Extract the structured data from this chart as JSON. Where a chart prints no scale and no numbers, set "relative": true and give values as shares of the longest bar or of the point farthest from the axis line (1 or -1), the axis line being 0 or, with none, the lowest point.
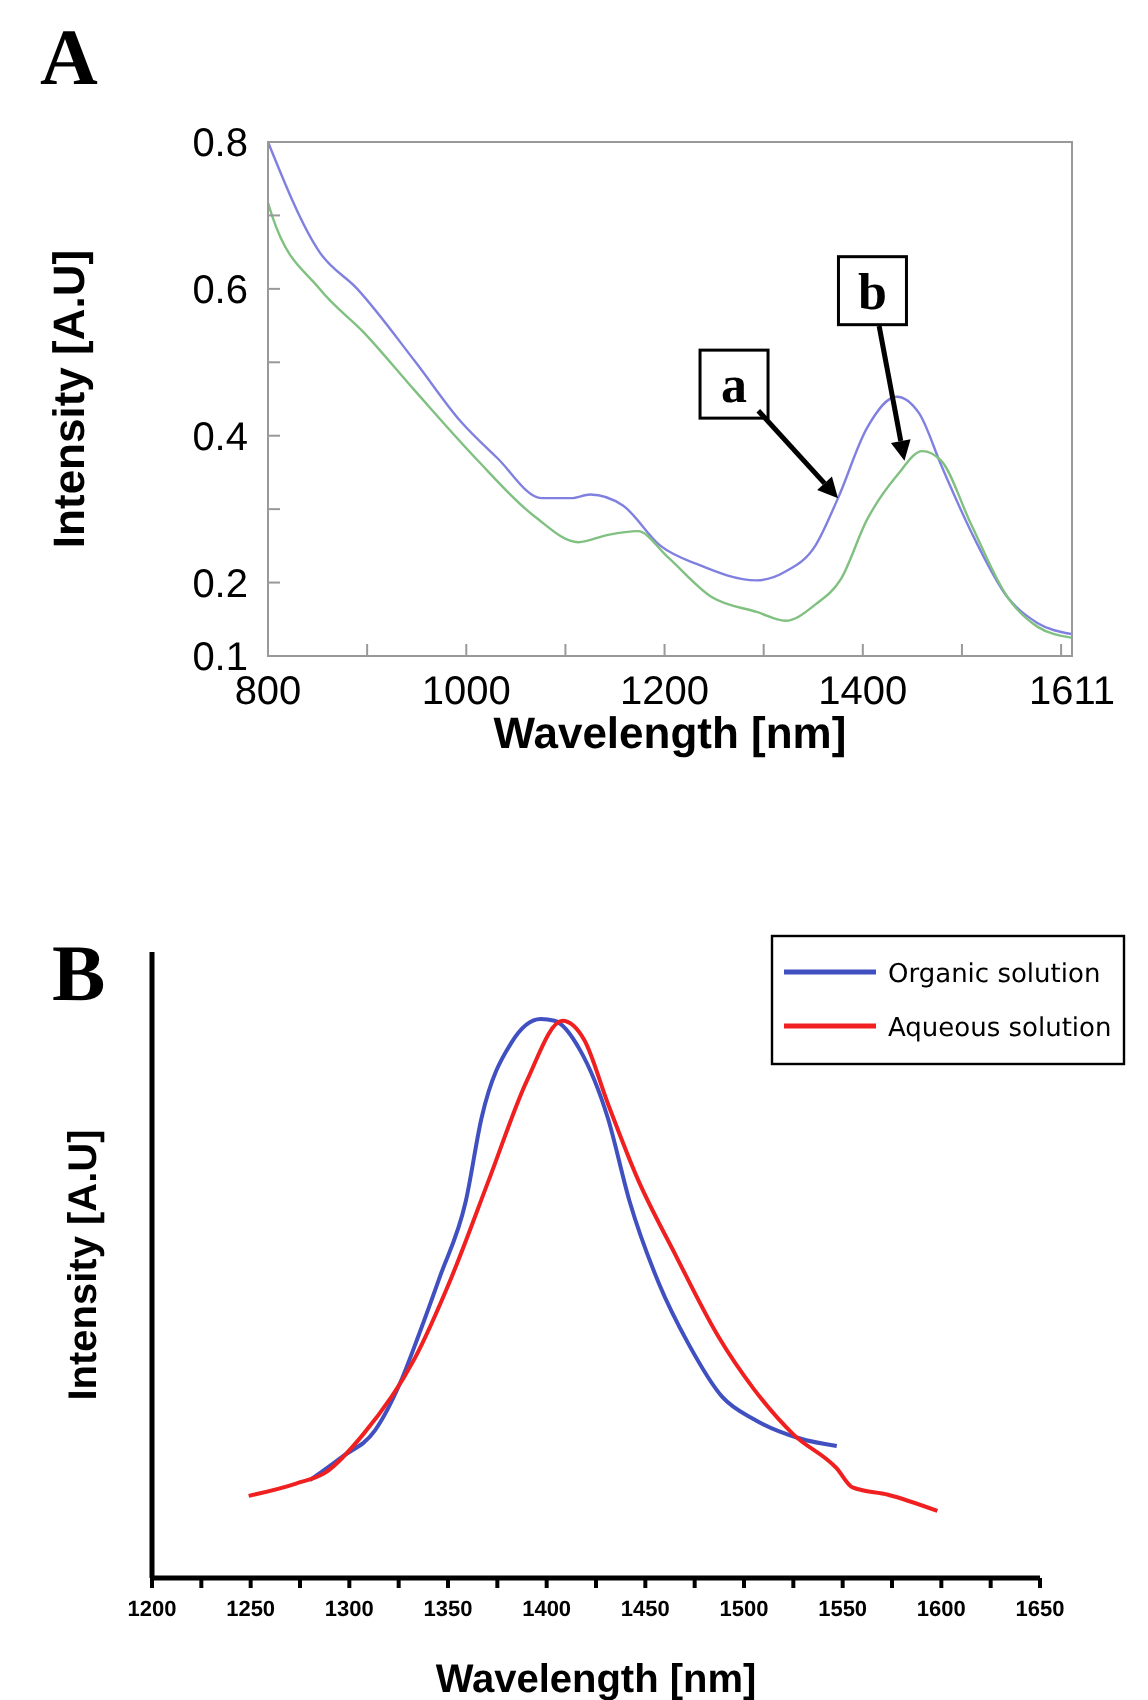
{
  "chart_data": [
    {
      "type": "line",
      "title": "A",
      "xlabel": "Wavelength [nm]",
      "ylabel": "Intensity [A.U]",
      "x": [
        800,
        852,
        890,
        949,
        994,
        1031,
        1076,
        1106,
        1125,
        1158,
        1196,
        1233,
        1293,
        1322,
        1352,
        1375,
        1404,
        1434,
        1457,
        1479,
        1509,
        1546,
        1576,
        1610
      ],
      "series": [
        {
          "color": "#8080e0",
          "values": [
            0.8,
            0.65,
            0.6,
            0.5,
            0.42,
            0.37,
            0.315,
            0.315,
            0.32,
            0.305,
            0.25,
            0.225,
            0.203,
            0.215,
            0.25,
            0.315,
            0.41,
            0.453,
            0.43,
            0.36,
            0.27,
            0.18,
            0.145,
            0.13
          ]
        },
        {
          "color": "#80c080",
          "x": [
            800,
            804,
            852,
            897,
            949,
            1009,
            1069,
            1113,
            1143,
            1173,
            1203,
            1248,
            1293,
            1322,
            1352,
            1378,
            1404,
            1434,
            1460,
            1479,
            1509,
            1546,
            1576,
            1610
          ],
          "values": [
            0.717,
            0.7,
            0.6,
            0.54,
            0.46,
            0.37,
            0.29,
            0.255,
            0.265,
            0.27,
            0.235,
            0.18,
            0.16,
            0.148,
            0.17,
            0.205,
            0.285,
            0.345,
            0.379,
            0.366,
            0.28,
            0.18,
            0.14,
            0.125
          ]
        }
      ],
      "xlim": [
        800,
        1611
      ],
      "xticks": [
        800,
        {
          "value": 900,
          "label": null
        },
        1000,
        {
          "value": 1100,
          "label": null
        },
        1200,
        {
          "value": 1300,
          "label": null
        },
        1400,
        {
          "value": 1500,
          "label": null
        },
        {
          "value": 1600,
          "label": null
        },
        1611
      ],
      "ylim": [
        0.1,
        0.8
      ],
      "yticks": [
        0.1,
        0.2,
        {
          "value": 0.3,
          "label": null
        },
        0.4,
        {
          "value": 0.5,
          "label": null
        },
        0.6,
        {
          "value": 0.7,
          "label": null
        },
        0.8
      ],
      "grid": false,
      "legend": false,
      "marker": "none",
      "line_style": "solid",
      "annotations": [
        {
          "text": "a",
          "x": 1375,
          "y": 0.315
        },
        {
          "text": "b",
          "x": 1442,
          "y": 0.366
        }
      ]
    },
    {
      "type": "line",
      "title": "B",
      "xlabel": "Wavelength [nm]",
      "ylabel": "Intensity [A.U]",
      "relative": true,
      "series": [
        {
          "name": "Organic solution",
          "color": "#4050c0",
          "x": [
            1280,
            1296,
            1313,
            1326,
            1335,
            1346,
            1359,
            1367,
            1382,
            1397,
            1404,
            1417,
            1431,
            1442,
            1457,
            1472,
            1489,
            1505,
            1528,
            1547
          ],
          "values": [
            0.175,
            0.216,
            0.264,
            0.351,
            0.433,
            0.54,
            0.674,
            0.823,
            0.957,
            1.0,
            0.997,
            0.944,
            0.823,
            0.674,
            0.526,
            0.418,
            0.324,
            0.284,
            0.25,
            0.236
          ]
        },
        {
          "name": "Aqueous solution",
          "color": "#f02020",
          "x": [
            1249,
            1273,
            1288,
            1307,
            1333,
            1352,
            1371,
            1390,
            1408,
            1419,
            1431,
            1446,
            1465,
            1487,
            1505,
            1525,
            1547,
            1555,
            1573,
            1598
          ],
          "values": [
            0.147,
            0.169,
            0.189,
            0.257,
            0.392,
            0.54,
            0.715,
            0.89,
            0.997,
            0.963,
            0.849,
            0.715,
            0.58,
            0.432,
            0.338,
            0.257,
            0.196,
            0.162,
            0.149,
            0.12
          ]
        }
      ],
      "xlim": [
        1200,
        1650
      ],
      "xticks": [
        1200,
        {
          "value": 1225,
          "label": null
        },
        1250,
        {
          "value": 1275,
          "label": null
        },
        1300,
        {
          "value": 1325,
          "label": null
        },
        1350,
        {
          "value": 1375,
          "label": null
        },
        1400,
        {
          "value": 1425,
          "label": null
        },
        1450,
        {
          "value": 1475,
          "label": null
        },
        1500,
        {
          "value": 1525,
          "label": null
        },
        1550,
        {
          "value": 1575,
          "label": null
        },
        1600,
        {
          "value": 1625,
          "label": null
        },
        1650
      ],
      "grid": false,
      "legend": "top right",
      "marker": "none",
      "line_style": "solid"
    }
  ]
}
